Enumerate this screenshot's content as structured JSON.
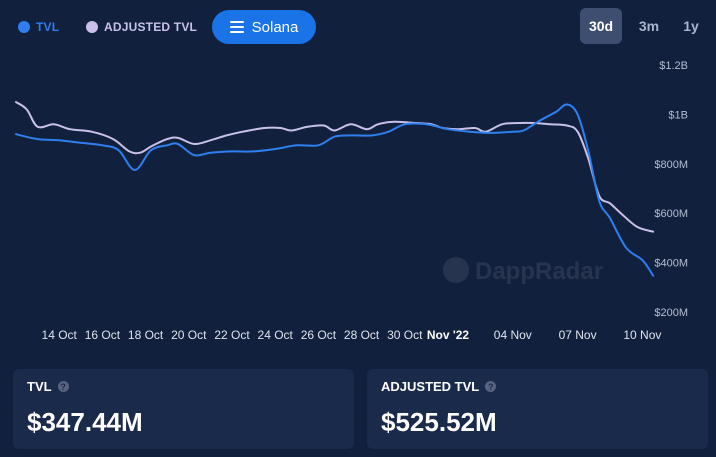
{
  "legend": {
    "tvl": "TVL",
    "adjusted_tvl": "ADJUSTED TVL"
  },
  "chain_button": {
    "label": "Solana",
    "icon": "solana-icon"
  },
  "ranges": [
    {
      "label": "30d",
      "active": true
    },
    {
      "label": "3m",
      "active": false
    },
    {
      "label": "1y",
      "active": false
    }
  ],
  "watermark": "DappRadar",
  "cards": {
    "tvl": {
      "label": "TVL",
      "value": "$347.44M",
      "icon": "info-icon"
    },
    "adjusted_tvl": {
      "label": "ADJUSTED TVL",
      "value": "$525.52M",
      "icon": "info-icon"
    }
  },
  "colors": {
    "background": "#11203d",
    "tvl": "#2f7ff0",
    "adjusted_tvl": "#c9c1ea",
    "active_chain": "#1b73e8"
  },
  "chart_data": {
    "type": "line",
    "x_domain": [
      "2022-10-12",
      "2022-11-11"
    ],
    "x_ticks": [
      {
        "date": "2022-10-14",
        "label": "14 Oct"
      },
      {
        "date": "2022-10-16",
        "label": "16 Oct"
      },
      {
        "date": "2022-10-18",
        "label": "18 Oct"
      },
      {
        "date": "2022-10-20",
        "label": "20 Oct"
      },
      {
        "date": "2022-10-22",
        "label": "22 Oct"
      },
      {
        "date": "2022-10-24",
        "label": "24 Oct"
      },
      {
        "date": "2022-10-26",
        "label": "26 Oct"
      },
      {
        "date": "2022-10-28",
        "label": "28 Oct"
      },
      {
        "date": "2022-10-30",
        "label": "30 Oct"
      },
      {
        "date": "2022-11-01",
        "label": "Nov '22",
        "bold": true
      },
      {
        "date": "2022-11-04",
        "label": "04 Nov"
      },
      {
        "date": "2022-11-07",
        "label": "07 Nov"
      },
      {
        "date": "2022-11-10",
        "label": "10 Nov"
      }
    ],
    "y_ticks": [
      {
        "value": 200,
        "label": "$200M"
      },
      {
        "value": 400,
        "label": "$400M"
      },
      {
        "value": 600,
        "label": "$600M"
      },
      {
        "value": 800,
        "label": "$800M"
      },
      {
        "value": 1000,
        "label": "$1B"
      },
      {
        "value": 1200,
        "label": "$1.2B"
      }
    ],
    "ylim": [
      200,
      1200
    ],
    "y_unit": "$M",
    "grid": false,
    "series": [
      {
        "name": "TVL",
        "color": "#2f7ff0",
        "points": [
          [
            "2022-10-12T00:00",
            920
          ],
          [
            "2022-10-13T00:00",
            900
          ],
          [
            "2022-10-14T00:00",
            895
          ],
          [
            "2022-10-15T00:00",
            885
          ],
          [
            "2022-10-16T00:00",
            875
          ],
          [
            "2022-10-16T18:00",
            855
          ],
          [
            "2022-10-17T12:00",
            775
          ],
          [
            "2022-10-18T06:00",
            855
          ],
          [
            "2022-10-19T00:00",
            875
          ],
          [
            "2022-10-19T12:00",
            880
          ],
          [
            "2022-10-20T06:00",
            835
          ],
          [
            "2022-10-21T00:00",
            845
          ],
          [
            "2022-10-22T00:00",
            850
          ],
          [
            "2022-10-23T00:00",
            850
          ],
          [
            "2022-10-24T00:00",
            860
          ],
          [
            "2022-10-25T00:00",
            875
          ],
          [
            "2022-10-26T00:00",
            875
          ],
          [
            "2022-10-26T18:00",
            910
          ],
          [
            "2022-10-27T12:00",
            915
          ],
          [
            "2022-10-28T12:00",
            915
          ],
          [
            "2022-10-29T06:00",
            930
          ],
          [
            "2022-10-30T00:00",
            960
          ],
          [
            "2022-10-31T00:00",
            960
          ],
          [
            "2022-11-01T00:00",
            940
          ],
          [
            "2022-11-02T00:00",
            930
          ],
          [
            "2022-11-03T00:00",
            925
          ],
          [
            "2022-11-04T00:00",
            930
          ],
          [
            "2022-11-04T12:00",
            935
          ],
          [
            "2022-11-05T06:00",
            975
          ],
          [
            "2022-11-06T00:00",
            1010
          ],
          [
            "2022-11-06T12:00",
            1040
          ],
          [
            "2022-11-07T00:00",
            1000
          ],
          [
            "2022-11-07T12:00",
            850
          ],
          [
            "2022-11-08T00:00",
            650
          ],
          [
            "2022-11-08T12:00",
            580
          ],
          [
            "2022-11-09T06:00",
            460
          ],
          [
            "2022-11-10T00:00",
            410
          ],
          [
            "2022-11-10T12:00",
            347
          ]
        ]
      },
      {
        "name": "ADJUSTED TVL",
        "color": "#c9c1ea",
        "points": [
          [
            "2022-10-12T00:00",
            1050
          ],
          [
            "2022-10-12T12:00",
            1020
          ],
          [
            "2022-10-13T00:00",
            950
          ],
          [
            "2022-10-13T18:00",
            960
          ],
          [
            "2022-10-14T12:00",
            940
          ],
          [
            "2022-10-15T12:00",
            930
          ],
          [
            "2022-10-16T12:00",
            900
          ],
          [
            "2022-10-17T06:00",
            850
          ],
          [
            "2022-10-17T18:00",
            845
          ],
          [
            "2022-10-18T06:00",
            870
          ],
          [
            "2022-10-19T00:00",
            900
          ],
          [
            "2022-10-19T12:00",
            905
          ],
          [
            "2022-10-20T06:00",
            880
          ],
          [
            "2022-10-21T00:00",
            895
          ],
          [
            "2022-10-21T18:00",
            915
          ],
          [
            "2022-10-22T12:00",
            930
          ],
          [
            "2022-10-23T12:00",
            945
          ],
          [
            "2022-10-24T06:00",
            945
          ],
          [
            "2022-10-24T18:00",
            935
          ],
          [
            "2022-10-25T12:00",
            950
          ],
          [
            "2022-10-26T06:00",
            955
          ],
          [
            "2022-10-26T18:00",
            935
          ],
          [
            "2022-10-27T12:00",
            960
          ],
          [
            "2022-10-28T06:00",
            940
          ],
          [
            "2022-10-28T18:00",
            960
          ],
          [
            "2022-10-29T12:00",
            970
          ],
          [
            "2022-10-30T12:00",
            965
          ],
          [
            "2022-10-31T06:00",
            960
          ],
          [
            "2022-10-31T18:00",
            945
          ],
          [
            "2022-11-01T12:00",
            940
          ],
          [
            "2022-11-02T06:00",
            945
          ],
          [
            "2022-11-02T18:00",
            930
          ],
          [
            "2022-11-03T12:00",
            960
          ],
          [
            "2022-11-04T06:00",
            965
          ],
          [
            "2022-11-05T00:00",
            965
          ],
          [
            "2022-11-05T18:00",
            960
          ],
          [
            "2022-11-06T12:00",
            955
          ],
          [
            "2022-11-07T00:00",
            930
          ],
          [
            "2022-11-07T12:00",
            820
          ],
          [
            "2022-11-08T00:00",
            670
          ],
          [
            "2022-11-08T12:00",
            640
          ],
          [
            "2022-11-09T00:00",
            600
          ],
          [
            "2022-11-09T18:00",
            545
          ],
          [
            "2022-11-10T12:00",
            525
          ]
        ]
      }
    ]
  }
}
